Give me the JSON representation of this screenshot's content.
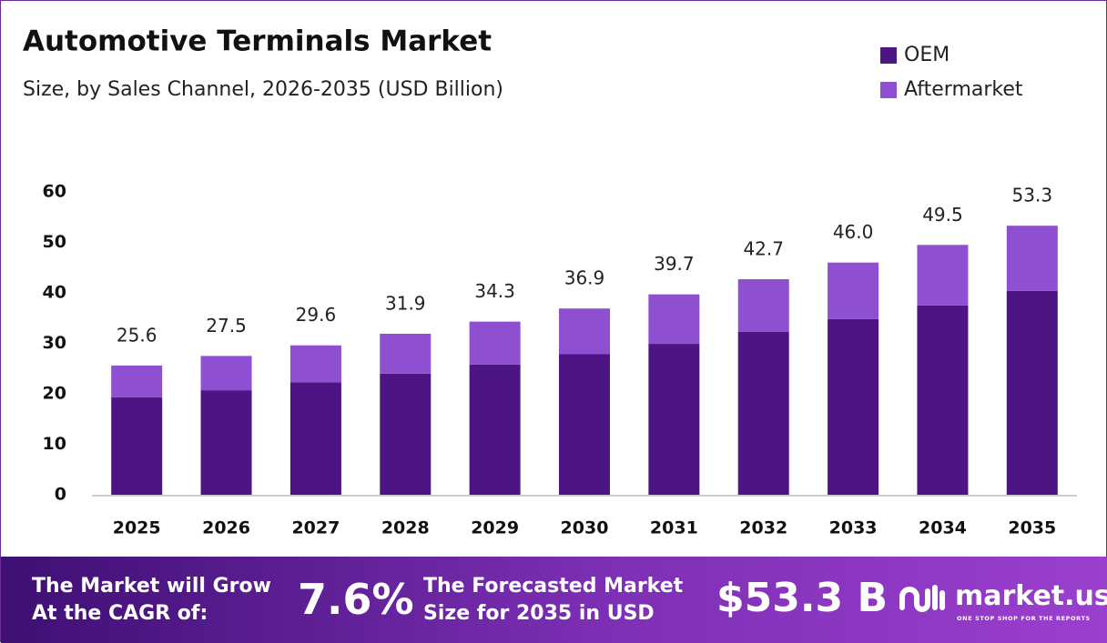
{
  "chart_data": {
    "type": "stacked-bar",
    "title": "Automotive Terminals Market",
    "subtitle": "Size, by Sales Channel, 2026-2035 (USD Billion)",
    "categories": [
      "2025",
      "2026",
      "2027",
      "2028",
      "2029",
      "2030",
      "2031",
      "2032",
      "2033",
      "2034",
      "2035"
    ],
    "series": [
      {
        "name": "OEM",
        "color": "#4d1584",
        "values": [
          19.3,
          20.7,
          22.3,
          24.0,
          25.8,
          27.9,
          29.9,
          32.3,
          34.8,
          37.5,
          40.4
        ]
      },
      {
        "name": "Aftermarket",
        "color": "#8e4fd0",
        "values": [
          6.3,
          6.8,
          7.3,
          7.9,
          8.5,
          9.0,
          9.8,
          10.4,
          11.2,
          12.0,
          12.9
        ]
      }
    ],
    "totals": [
      25.6,
      27.5,
      29.6,
      31.9,
      34.3,
      36.9,
      39.7,
      42.7,
      46.0,
      49.5,
      53.3
    ],
    "value_labels": [
      "25.6",
      "27.5",
      "29.6",
      "31.9",
      "34.3",
      "36.9",
      "39.7",
      "42.7",
      "46.0",
      "49.5",
      "53.3"
    ],
    "ylim": [
      0,
      60
    ],
    "yticks": [
      0,
      10,
      20,
      30,
      40,
      50,
      60
    ],
    "grid": false,
    "legend": "top-right"
  },
  "footer": {
    "cagr_text": "The Market will Grow At the CAGR of:",
    "cagr": "7.6%",
    "forecast_text": "The Forecasted Market Size for 2035 in USD",
    "forecast": "$53.3 B",
    "brand": "market.us",
    "tagline": "ONE STOP SHOP FOR THE REPORTS"
  }
}
